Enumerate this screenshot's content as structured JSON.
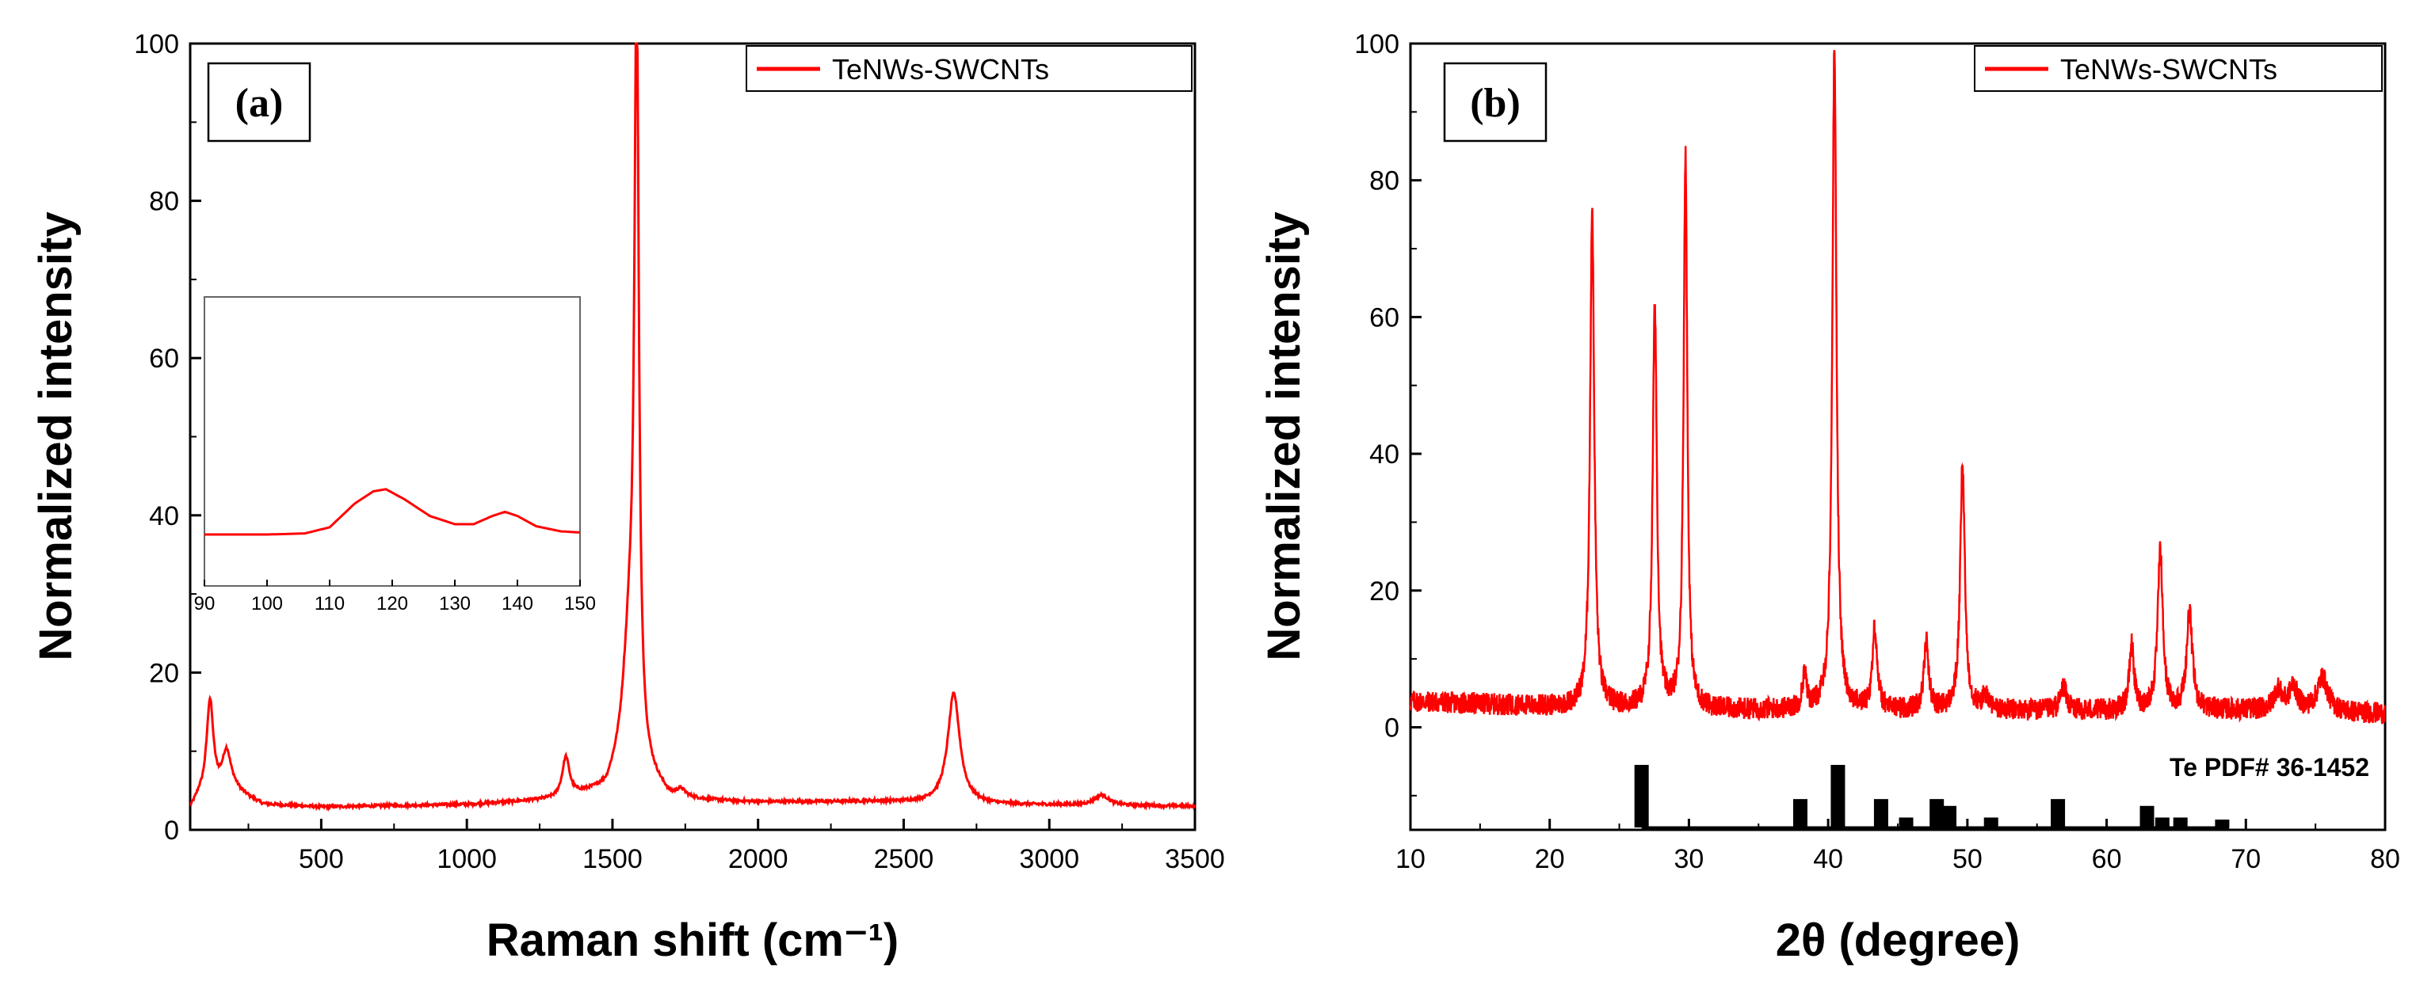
{
  "colors": {
    "series": "#ff0000",
    "reference": "#000000",
    "axis": "#000000"
  },
  "chart_data": [
    {
      "type": "line",
      "panel_label": "(a)",
      "xlabel": "Raman shift (cm⁻¹)",
      "ylabel": "Normalized intensity",
      "xlim": [
        50,
        3500
      ],
      "ylim": [
        0,
        100
      ],
      "xticks": [
        500,
        1000,
        1500,
        2000,
        2500,
        3000,
        3500
      ],
      "yticks": [
        0,
        20,
        40,
        60,
        80,
        100
      ],
      "legend": {
        "label": "TeNWs-SWCNTs",
        "position": "top-right"
      },
      "series": [
        {
          "name": "TeNWs-SWCNTs",
          "baseline": [
            [
              50,
              2.5
            ],
            [
              80,
              4
            ],
            [
              200,
              5
            ],
            [
              300,
              3.2
            ],
            [
              500,
              2.9
            ],
            [
              1000,
              3.2
            ],
            [
              1300,
              3.8
            ],
            [
              1480,
              5
            ],
            [
              1540,
              9
            ],
            [
              1700,
              3.8
            ],
            [
              2000,
              3.5
            ],
            [
              2400,
              3.6
            ],
            [
              2800,
              3.2
            ],
            [
              3500,
              3
            ]
          ],
          "peaks": [
            {
              "center": 118,
              "height": 12,
              "width": 14
            },
            {
              "center": 175,
              "height": 5,
              "width": 18
            },
            {
              "center": 1340,
              "height": 5,
              "width": 15
            },
            {
              "center": 1583,
              "height": 94,
              "width": 9
            },
            {
              "center": 1560,
              "height": 15,
              "width": 24
            },
            {
              "center": 1735,
              "height": 1,
              "width": 20
            },
            {
              "center": 2672,
              "height": 14,
              "width": 25
            },
            {
              "center": 3180,
              "height": 1.3,
              "width": 30
            }
          ]
        }
      ],
      "inset": {
        "xlim": [
          90,
          150
        ],
        "xticks": [
          90,
          100,
          110,
          120,
          130,
          140,
          150
        ],
        "points": [
          [
            90,
            0
          ],
          [
            100,
            0
          ],
          [
            106,
            0.05
          ],
          [
            110,
            0.35
          ],
          [
            114,
            1.5
          ],
          [
            117,
            2.1
          ],
          [
            119,
            2.2
          ],
          [
            122,
            1.7
          ],
          [
            126,
            0.9
          ],
          [
            130,
            0.5
          ],
          [
            133,
            0.5
          ],
          [
            136,
            0.9
          ],
          [
            138,
            1.1
          ],
          [
            140,
            0.9
          ],
          [
            143,
            0.4
          ],
          [
            147,
            0.15
          ],
          [
            150,
            0.1
          ]
        ]
      }
    },
    {
      "type": "line",
      "panel_label": "(b)",
      "xlabel": "2θ (degree)",
      "ylabel": "Normalized intensity",
      "xlim": [
        10,
        80
      ],
      "ylim": [
        -15,
        100
      ],
      "xticks": [
        10,
        20,
        30,
        40,
        50,
        60,
        70,
        80
      ],
      "yticks": [
        0,
        20,
        40,
        60,
        80,
        100
      ],
      "legend": {
        "label": "TeNWs-SWCNTs",
        "position": "top-right"
      },
      "series": [
        {
          "name": "TeNWs-SWCNTs",
          "baseline": [
            [
              10,
              3.8
            ],
            [
              20,
              3
            ],
            [
              30,
              2.5
            ],
            [
              40,
              2.5
            ],
            [
              50,
              2.4
            ],
            [
              60,
              2.4
            ],
            [
              70,
              2.5
            ],
            [
              80,
              2
            ]
          ],
          "peaks": [
            {
              "center": 23.05,
              "height": 73,
              "width": 0.18
            },
            {
              "center": 27.55,
              "height": 59,
              "width": 0.18
            },
            {
              "center": 29.75,
              "height": 81,
              "width": 0.16
            },
            {
              "center": 38.3,
              "height": 5,
              "width": 0.18
            },
            {
              "center": 40.45,
              "height": 97,
              "width": 0.18
            },
            {
              "center": 43.35,
              "height": 12,
              "width": 0.2
            },
            {
              "center": 47.05,
              "height": 10,
              "width": 0.2
            },
            {
              "center": 49.65,
              "height": 36,
              "width": 0.2
            },
            {
              "center": 51.3,
              "height": 2,
              "width": 0.25
            },
            {
              "center": 56.9,
              "height": 3.5,
              "width": 0.25
            },
            {
              "center": 61.8,
              "height": 9.5,
              "width": 0.2
            },
            {
              "center": 63.85,
              "height": 23,
              "width": 0.22
            },
            {
              "center": 65.95,
              "height": 14,
              "width": 0.25
            },
            {
              "center": 72.3,
              "height": 3,
              "width": 0.35
            },
            {
              "center": 73.4,
              "height": 3.5,
              "width": 0.35
            },
            {
              "center": 75.5,
              "height": 5,
              "width": 0.45
            }
          ]
        }
      ],
      "reference": {
        "label": "Te PDF# 36-1452",
        "baseline": -15,
        "bars": [
          [
            26.6,
            -5.5
          ],
          [
            38.0,
            -10.5
          ],
          [
            40.7,
            -5.5
          ],
          [
            43.8,
            -10.5
          ],
          [
            45.6,
            -13.2
          ],
          [
            47.8,
            -10.5
          ],
          [
            48.7,
            -11.5
          ],
          [
            51.7,
            -13.2
          ],
          [
            56.5,
            -10.5
          ],
          [
            62.9,
            -11.5
          ],
          [
            64.0,
            -13.2
          ],
          [
            65.3,
            -13.2
          ],
          [
            68.3,
            -13.5
          ]
        ]
      }
    }
  ]
}
